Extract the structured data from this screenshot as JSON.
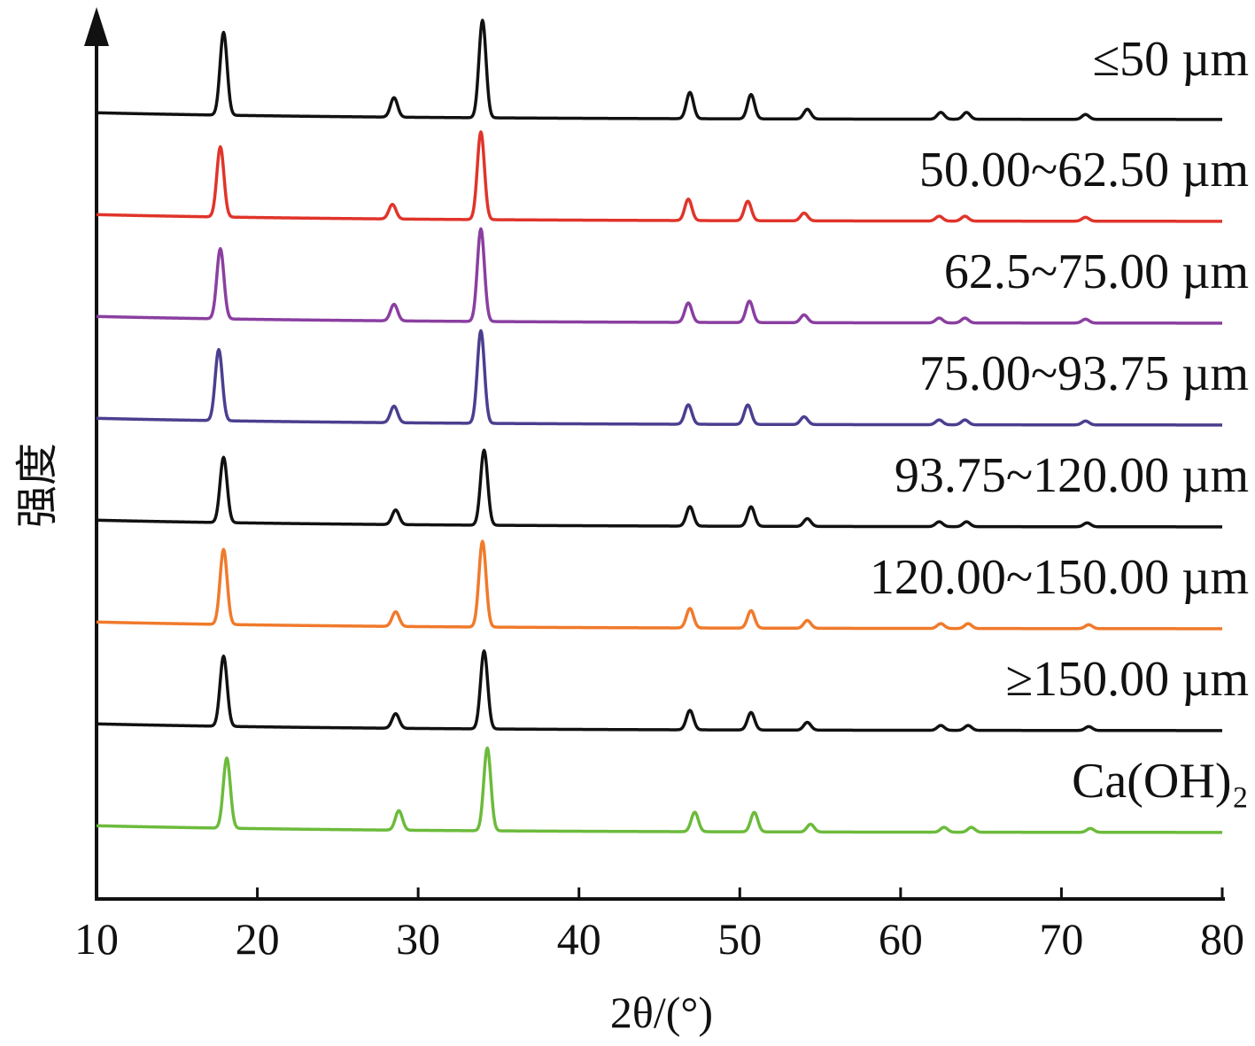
{
  "chart_data": {
    "type": "line",
    "title": "",
    "xlabel": "2θ/(°)",
    "ylabel": "强度",
    "xlim": [
      10,
      80
    ],
    "xticks": [
      "10",
      "20",
      "30",
      "40",
      "50",
      "60",
      "70",
      "80"
    ],
    "yticks": [],
    "grid": false,
    "legend": "inline labels to the right above each trace",
    "y_units": "relative intensity (a.u.), traces vertically offset",
    "series": [
      {
        "name": "≤50 µm",
        "color": "#111111",
        "offset": 7,
        "peaks": [
          {
            "x": 17.9,
            "y": 0.85
          },
          {
            "x": 28.5,
            "y": 0.2
          },
          {
            "x": 34.0,
            "y": 1.0
          },
          {
            "x": 46.9,
            "y": 0.27
          },
          {
            "x": 50.7,
            "y": 0.25
          },
          {
            "x": 54.2,
            "y": 0.1
          },
          {
            "x": 62.5,
            "y": 0.07
          },
          {
            "x": 64.1,
            "y": 0.07
          },
          {
            "x": 71.5,
            "y": 0.05
          }
        ]
      },
      {
        "name": "50.00~62.50 µm",
        "color": "#e0342a",
        "offset": 6,
        "peaks": [
          {
            "x": 17.7,
            "y": 0.72
          },
          {
            "x": 28.4,
            "y": 0.15
          },
          {
            "x": 33.9,
            "y": 0.9
          },
          {
            "x": 46.8,
            "y": 0.22
          },
          {
            "x": 50.5,
            "y": 0.2
          },
          {
            "x": 54.0,
            "y": 0.08
          },
          {
            "x": 62.4,
            "y": 0.05
          },
          {
            "x": 64.0,
            "y": 0.05
          },
          {
            "x": 71.5,
            "y": 0.04
          }
        ]
      },
      {
        "name": "62.5~75.00 µm",
        "color": "#8a3fa0",
        "offset": 5,
        "peaks": [
          {
            "x": 17.7,
            "y": 0.72
          },
          {
            "x": 28.5,
            "y": 0.17
          },
          {
            "x": 33.9,
            "y": 0.95
          },
          {
            "x": 46.8,
            "y": 0.2
          },
          {
            "x": 50.6,
            "y": 0.22
          },
          {
            "x": 54.0,
            "y": 0.08
          },
          {
            "x": 62.4,
            "y": 0.05
          },
          {
            "x": 64.0,
            "y": 0.05
          },
          {
            "x": 71.5,
            "y": 0.04
          }
        ]
      },
      {
        "name": "75.00~93.75 µm",
        "color": "#4a3f8f",
        "offset": 4,
        "peaks": [
          {
            "x": 17.6,
            "y": 0.73
          },
          {
            "x": 28.5,
            "y": 0.17
          },
          {
            "x": 33.9,
            "y": 0.95
          },
          {
            "x": 46.8,
            "y": 0.2
          },
          {
            "x": 50.5,
            "y": 0.2
          },
          {
            "x": 54.0,
            "y": 0.08
          },
          {
            "x": 62.4,
            "y": 0.05
          },
          {
            "x": 64.0,
            "y": 0.05
          },
          {
            "x": 71.5,
            "y": 0.04
          }
        ]
      },
      {
        "name": "93.75~120.00 µm",
        "color": "#111111",
        "offset": 3,
        "peaks": [
          {
            "x": 17.9,
            "y": 0.67
          },
          {
            "x": 28.6,
            "y": 0.15
          },
          {
            "x": 34.1,
            "y": 0.77
          },
          {
            "x": 46.9,
            "y": 0.2
          },
          {
            "x": 50.7,
            "y": 0.2
          },
          {
            "x": 54.2,
            "y": 0.08
          },
          {
            "x": 62.4,
            "y": 0.05
          },
          {
            "x": 64.1,
            "y": 0.05
          },
          {
            "x": 71.6,
            "y": 0.04
          }
        ]
      },
      {
        "name": "120.00~150.00 µm",
        "color": "#f07a2c",
        "offset": 2,
        "peaks": [
          {
            "x": 17.9,
            "y": 0.77
          },
          {
            "x": 28.6,
            "y": 0.15
          },
          {
            "x": 34.0,
            "y": 0.88
          },
          {
            "x": 46.9,
            "y": 0.2
          },
          {
            "x": 50.7,
            "y": 0.18
          },
          {
            "x": 54.2,
            "y": 0.08
          },
          {
            "x": 62.5,
            "y": 0.05
          },
          {
            "x": 64.2,
            "y": 0.05
          },
          {
            "x": 71.7,
            "y": 0.04
          }
        ]
      },
      {
        "name": "≥150.00 µm",
        "color": "#111111",
        "offset": 1,
        "peaks": [
          {
            "x": 17.9,
            "y": 0.72
          },
          {
            "x": 28.6,
            "y": 0.15
          },
          {
            "x": 34.1,
            "y": 0.8
          },
          {
            "x": 46.9,
            "y": 0.2
          },
          {
            "x": 50.7,
            "y": 0.18
          },
          {
            "x": 54.2,
            "y": 0.08
          },
          {
            "x": 62.5,
            "y": 0.05
          },
          {
            "x": 64.2,
            "y": 0.05
          },
          {
            "x": 71.7,
            "y": 0.04
          }
        ]
      },
      {
        "name": "Ca(OH)₂",
        "color": "#6cbb3c",
        "offset": 0,
        "peaks": [
          {
            "x": 18.1,
            "y": 0.72
          },
          {
            "x": 28.8,
            "y": 0.2
          },
          {
            "x": 34.3,
            "y": 0.85
          },
          {
            "x": 47.2,
            "y": 0.2
          },
          {
            "x": 50.9,
            "y": 0.2
          },
          {
            "x": 54.4,
            "y": 0.08
          },
          {
            "x": 62.7,
            "y": 0.05
          },
          {
            "x": 64.4,
            "y": 0.05
          },
          {
            "x": 71.8,
            "y": 0.04
          }
        ]
      }
    ]
  }
}
